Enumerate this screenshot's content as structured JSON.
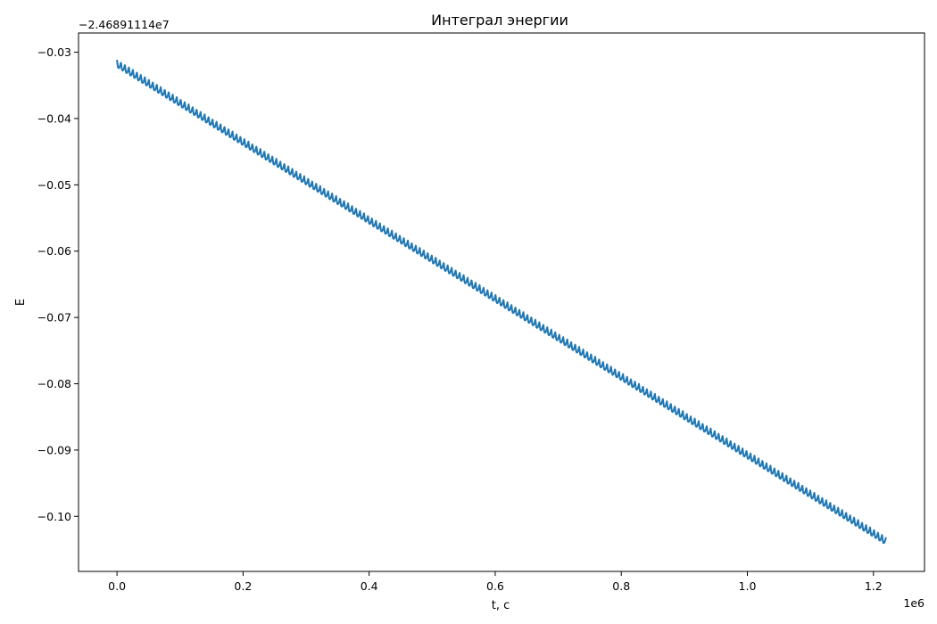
{
  "chart_data": {
    "type": "line",
    "title": "Интеграл энергии",
    "xlabel": "t, c",
    "ylabel": "E",
    "x_offset_text": "1e6",
    "y_offset_text": "−2.46891114e7",
    "xlim": [
      -0.061,
      1.281
    ],
    "ylim": [
      -0.1083,
      -0.0271
    ],
    "x_ticks": [
      0.0,
      0.2,
      0.4,
      0.6,
      0.8,
      1.0,
      1.2
    ],
    "x_tick_labels": [
      "0.0",
      "0.2",
      "0.4",
      "0.6",
      "0.8",
      "1.0",
      "1.2"
    ],
    "y_ticks": [
      -0.03,
      -0.04,
      -0.05,
      -0.06,
      -0.07,
      -0.08,
      -0.09,
      -0.1
    ],
    "y_tick_labels": [
      "−0.03",
      "−0.04",
      "−0.05",
      "−0.06",
      "−0.07",
      "−0.08",
      "−0.09",
      "−0.10"
    ],
    "grid": false,
    "series": [
      {
        "name": "",
        "color": "#1f77b4",
        "x_start": 0.0,
        "x_end": 1.22,
        "y_start": -0.0317,
        "y_end": -0.1037,
        "oscillation_amplitude": 0.0011,
        "oscillation_cycles": 193
      }
    ]
  }
}
